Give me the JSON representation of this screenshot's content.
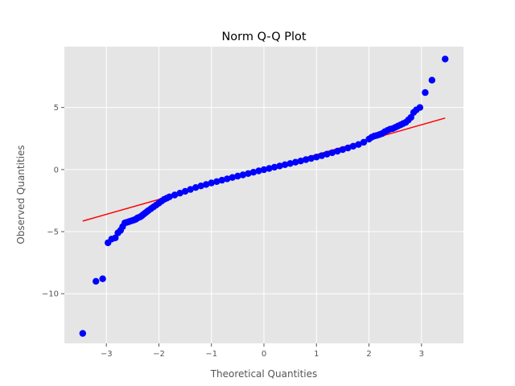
{
  "chart_data": {
    "type": "scatter",
    "title": "Norm Q-Q Plot",
    "xlabel": "Theoretical Quantities",
    "ylabel": "Observed Quantities",
    "xlim": [
      -3.8,
      3.8
    ],
    "ylim": [
      -14.0,
      9.9
    ],
    "grid": true,
    "xticks": [
      -3,
      -2,
      -1,
      0,
      1,
      2,
      3
    ],
    "xtick_labels": [
      "−3",
      "−2",
      "−1",
      "0",
      "1",
      "2",
      "3"
    ],
    "yticks": [
      -10,
      -5,
      0,
      5
    ],
    "ytick_labels": [
      "−10",
      "−5",
      "0",
      "5"
    ],
    "series": [
      {
        "kind": "points",
        "color": "#0000ff",
        "points": [
          [
            -3.45,
            -13.2
          ],
          [
            -3.2,
            -9.0
          ],
          [
            -3.07,
            -8.8
          ],
          [
            -2.97,
            -5.9
          ],
          [
            -2.9,
            -5.6
          ],
          [
            -2.83,
            -5.5
          ],
          [
            -2.78,
            -5.1
          ],
          [
            -2.73,
            -4.9
          ],
          [
            -2.69,
            -4.6
          ],
          [
            -2.65,
            -4.3
          ],
          [
            -2.61,
            -4.25
          ],
          [
            -2.57,
            -4.2
          ],
          [
            -2.54,
            -4.15
          ],
          [
            -2.5,
            -4.1
          ],
          [
            -2.47,
            -4.05
          ],
          [
            -2.44,
            -4.0
          ],
          [
            -2.41,
            -3.9
          ],
          [
            -2.38,
            -3.85
          ],
          [
            -2.35,
            -3.8
          ],
          [
            -2.32,
            -3.7
          ],
          [
            -2.29,
            -3.6
          ],
          [
            -2.26,
            -3.5
          ],
          [
            -2.23,
            -3.4
          ],
          [
            -2.2,
            -3.3
          ],
          [
            -2.15,
            -3.15
          ],
          [
            -2.1,
            -3.0
          ],
          [
            -2.05,
            -2.85
          ],
          [
            -2.0,
            -2.7
          ],
          [
            -1.95,
            -2.55
          ],
          [
            -1.9,
            -2.4
          ],
          [
            -1.85,
            -2.3
          ],
          [
            -1.8,
            -2.2
          ],
          [
            -1.7,
            -2.05
          ],
          [
            -1.6,
            -1.9
          ],
          [
            -1.5,
            -1.75
          ],
          [
            -1.4,
            -1.6
          ],
          [
            -1.3,
            -1.45
          ],
          [
            -1.2,
            -1.32
          ],
          [
            -1.1,
            -1.2
          ],
          [
            -1.0,
            -1.08
          ],
          [
            -0.9,
            -0.97
          ],
          [
            -0.8,
            -0.86
          ],
          [
            -0.7,
            -0.75
          ],
          [
            -0.6,
            -0.64
          ],
          [
            -0.5,
            -0.53
          ],
          [
            -0.4,
            -0.43
          ],
          [
            -0.3,
            -0.32
          ],
          [
            -0.2,
            -0.22
          ],
          [
            -0.1,
            -0.11
          ],
          [
            0.0,
            -0.01
          ],
          [
            0.1,
            0.09
          ],
          [
            0.2,
            0.19
          ],
          [
            0.3,
            0.29
          ],
          [
            0.4,
            0.39
          ],
          [
            0.5,
            0.49
          ],
          [
            0.6,
            0.59
          ],
          [
            0.7,
            0.69
          ],
          [
            0.8,
            0.8
          ],
          [
            0.9,
            0.9
          ],
          [
            1.0,
            1.01
          ],
          [
            1.1,
            1.12
          ],
          [
            1.2,
            1.24
          ],
          [
            1.3,
            1.36
          ],
          [
            1.4,
            1.48
          ],
          [
            1.5,
            1.61
          ],
          [
            1.6,
            1.74
          ],
          [
            1.7,
            1.88
          ],
          [
            1.8,
            2.02
          ],
          [
            1.9,
            2.2
          ],
          [
            2.0,
            2.45
          ],
          [
            2.05,
            2.6
          ],
          [
            2.1,
            2.7
          ],
          [
            2.15,
            2.75
          ],
          [
            2.2,
            2.82
          ],
          [
            2.25,
            2.9
          ],
          [
            2.3,
            3.05
          ],
          [
            2.35,
            3.15
          ],
          [
            2.4,
            3.25
          ],
          [
            2.45,
            3.3
          ],
          [
            2.5,
            3.4
          ],
          [
            2.55,
            3.5
          ],
          [
            2.6,
            3.6
          ],
          [
            2.65,
            3.7
          ],
          [
            2.7,
            3.8
          ],
          [
            2.75,
            4.0
          ],
          [
            2.8,
            4.2
          ],
          [
            2.85,
            4.6
          ],
          [
            2.9,
            4.8
          ],
          [
            2.97,
            5.0
          ],
          [
            3.07,
            6.2
          ],
          [
            3.2,
            7.2
          ],
          [
            3.45,
            8.9
          ]
        ]
      },
      {
        "kind": "line",
        "color": "#ff0000",
        "points": [
          [
            -3.45,
            -4.15
          ],
          [
            3.45,
            4.15
          ]
        ]
      }
    ]
  }
}
